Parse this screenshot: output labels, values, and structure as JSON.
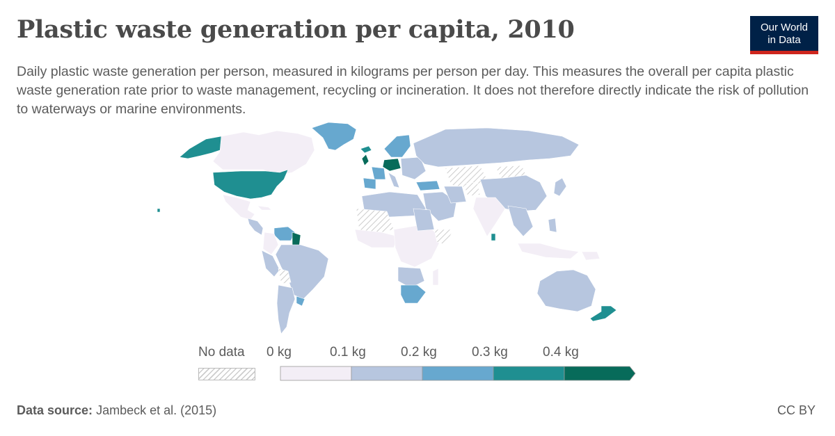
{
  "header": {
    "title": "Plastic waste generation per capita, 2010",
    "subtitle": "Daily plastic waste generation per person, measured in kilograms per person per day. This measures the overall per capita plastic waste generation rate prior to waste management, recycling or incineration. It does not therefore directly indicate the risk of pollution to waterways or marine environments."
  },
  "logo": {
    "line1": "Our World",
    "line2": "in Data"
  },
  "legend": {
    "no_data_label": "No data",
    "bins": [
      {
        "label": "0 kg",
        "color": "#f3eef6"
      },
      {
        "label": "0.1 kg",
        "color": "#b7c6df"
      },
      {
        "label": "0.2 kg",
        "color": "#67a8cf"
      },
      {
        "label": "0.3 kg",
        "color": "#1f8f91"
      },
      {
        "label": "0.4 kg",
        "color": "#076b5a"
      }
    ]
  },
  "footer": {
    "source_label": "Data source:",
    "source_value": "Jambeck et al. (2015)",
    "license": "CC BY"
  },
  "colors": {
    "title": "#4a4a4a",
    "text": "#5b5b5b",
    "logo_bg": "#002147",
    "logo_accent": "#ce261e",
    "no_data_hatch": "#cccccc"
  }
}
